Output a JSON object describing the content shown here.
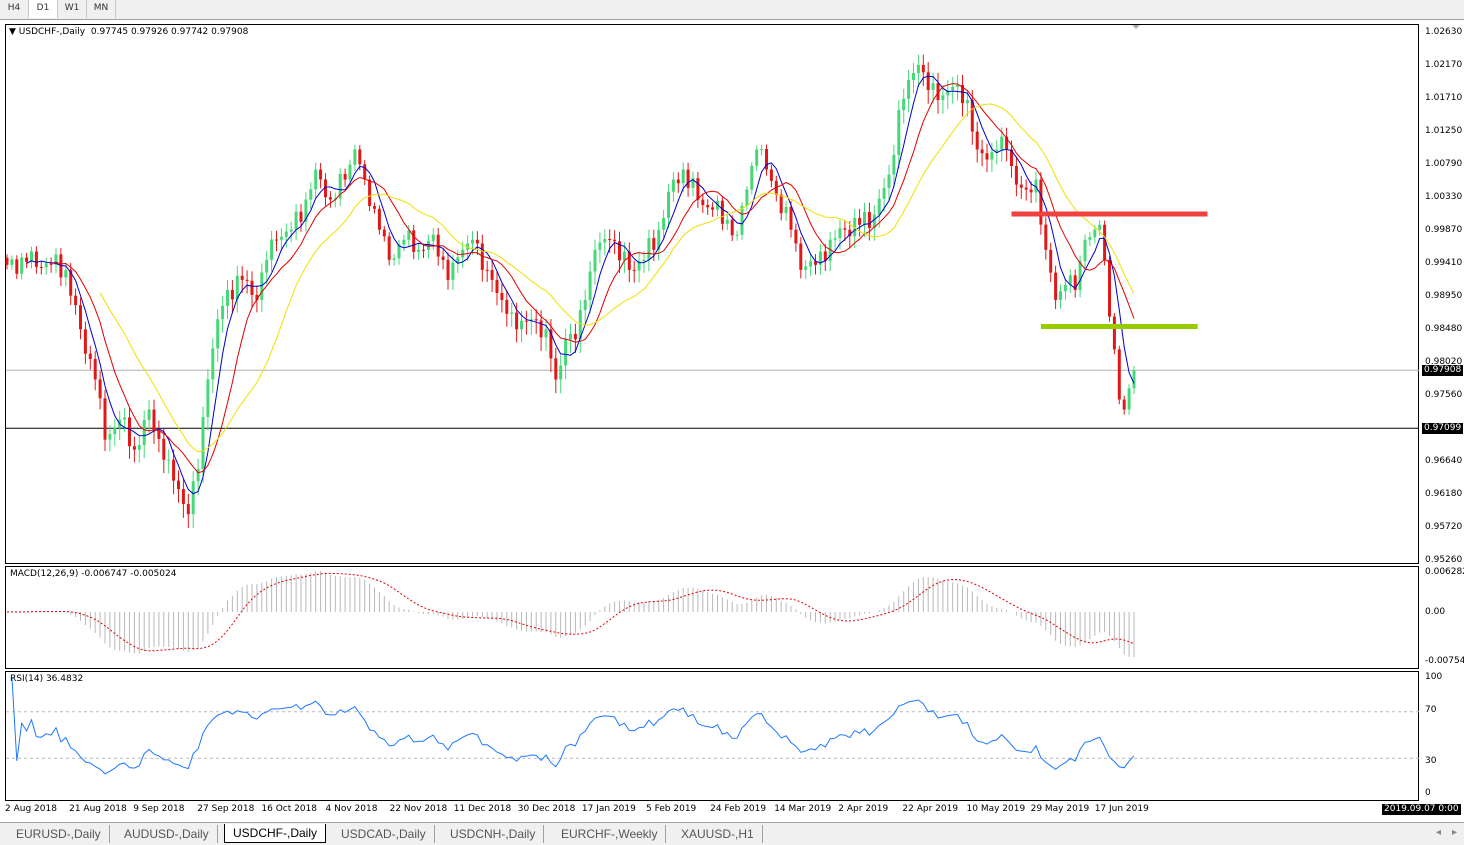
{
  "timeframe_tabs": [
    "H4",
    "D1",
    "W1",
    "MN"
  ],
  "active_timeframe": "D1",
  "header": {
    "symbol": "USDCHF-,Daily",
    "ohlc": "0.97745 0.97926 0.97742 0.97908"
  },
  "macd": {
    "label": "MACD(12,26,9) -0.006747 -0.005024",
    "axis": [
      "0.006282",
      "0.00",
      "-0.007542"
    ]
  },
  "rsi": {
    "label": "RSI(14) 36.4832",
    "axis": [
      "100",
      "70",
      "30",
      "0"
    ]
  },
  "price_axis": [
    "1.02630",
    "1.02170",
    "1.01710",
    "1.01250",
    "1.00790",
    "1.00330",
    "0.99870",
    "0.99410",
    "0.98950",
    "0.98480",
    "0.98020",
    "0.97560",
    "0.96640",
    "0.96180",
    "0.95720",
    "0.95260"
  ],
  "price_tags": {
    "bid": "0.97908",
    "line": "0.97099"
  },
  "x_axis": [
    "2 Aug 2018",
    "21 Aug 2018",
    "9 Sep 2018",
    "27 Sep 2018",
    "16 Oct 2018",
    "4 Nov 2018",
    "22 Nov 2018",
    "11 Dec 2018",
    "30 Dec 2018",
    "17 Jan 2019",
    "5 Feb 2019",
    "24 Feb 2019",
    "14 Mar 2019",
    "2 Apr 2019",
    "22 Apr 2019",
    "10 May 2019",
    "29 May 2019",
    "17 Jun 2019"
  ],
  "cursor_date": "2019.09.07 0:00",
  "symbol_tabs": [
    "EURUSD-,Daily",
    "AUDUSD-,Daily",
    "USDCHF-,Daily",
    "USDCAD-,Daily",
    "USDCNH-,Daily",
    "EURCHF-,Weekly",
    "XAUUSD-,H1"
  ],
  "active_symbol_tab": "USDCHF-,Daily",
  "chart_data": {
    "type": "candlestick",
    "ylim": [
      0.9526,
      1.0263
    ],
    "bars_total": 231,
    "close_anchors": [
      [
        0,
        0.9938
      ],
      [
        4,
        0.9942
      ],
      [
        9,
        0.9938
      ],
      [
        12,
        0.9931
      ],
      [
        15,
        0.9848
      ],
      [
        18,
        0.9778
      ],
      [
        20,
        0.9694
      ],
      [
        23,
        0.9722
      ],
      [
        26,
        0.968
      ],
      [
        29,
        0.9736
      ],
      [
        32,
        0.9666
      ],
      [
        35,
        0.9625
      ],
      [
        37,
        0.959
      ],
      [
        39,
        0.9653
      ],
      [
        41,
        0.9778
      ],
      [
        43,
        0.9862
      ],
      [
        45,
        0.9903
      ],
      [
        48,
        0.9917
      ],
      [
        51,
        0.9889
      ],
      [
        53,
        0.9945
      ],
      [
        55,
        0.9973
      ],
      [
        58,
        0.9987
      ],
      [
        61,
        1.0029
      ],
      [
        63,
        1.0071
      ],
      [
        66,
        1.0029
      ],
      [
        69,
        1.0057
      ],
      [
        71,
        1.0099
      ],
      [
        73,
        1.0057
      ],
      [
        76,
        0.9987
      ],
      [
        78,
        0.9945
      ],
      [
        81,
        0.9973
      ],
      [
        84,
        0.9959
      ],
      [
        87,
        0.998
      ],
      [
        90,
        0.9917
      ],
      [
        93,
        0.9959
      ],
      [
        95,
        0.9973
      ],
      [
        97,
        0.9931
      ],
      [
        99,
        0.9917
      ],
      [
        101,
        0.9889
      ],
      [
        104,
        0.9848
      ],
      [
        107,
        0.9862
      ],
      [
        110,
        0.9848
      ],
      [
        112,
        0.9778
      ],
      [
        114,
        0.9834
      ],
      [
        116,
        0.9834
      ],
      [
        118,
        0.9889
      ],
      [
        120,
        0.9959
      ],
      [
        123,
        0.9973
      ],
      [
        127,
        0.9931
      ],
      [
        130,
        0.9945
      ],
      [
        133,
        0.9987
      ],
      [
        136,
        1.0057
      ],
      [
        138,
        1.0071
      ],
      [
        141,
        1.0029
      ],
      [
        144,
        1.0015
      ],
      [
        147,
        1.0001
      ],
      [
        149,
        0.998
      ],
      [
        151,
        1.0043
      ],
      [
        153,
        1.0099
      ],
      [
        155,
        1.0071
      ],
      [
        157,
        1.0036
      ],
      [
        160,
        0.9987
      ],
      [
        162,
        0.9931
      ],
      [
        165,
        0.9938
      ],
      [
        168,
        0.9973
      ],
      [
        171,
        0.9987
      ],
      [
        174,
        0.9994
      ],
      [
        177,
        1.0008
      ],
      [
        180,
        1.0064
      ],
      [
        182,
        1.0154
      ],
      [
        184,
        1.0196
      ],
      [
        186,
        1.0217
      ],
      [
        188,
        1.0182
      ],
      [
        190,
        1.0168
      ],
      [
        192,
        1.0182
      ],
      [
        194,
        1.0189
      ],
      [
        196,
        1.0168
      ],
      [
        198,
        1.0099
      ],
      [
        200,
        1.0085
      ],
      [
        202,
        1.0099
      ],
      [
        204,
        1.0099
      ],
      [
        206,
        1.005
      ],
      [
        208,
        1.0043
      ],
      [
        210,
        1.0057
      ],
      [
        212,
        0.9959
      ],
      [
        214,
        0.9889
      ],
      [
        216,
        0.991
      ],
      [
        218,
        0.9903
      ],
      [
        220,
        0.9973
      ],
      [
        222,
        0.9987
      ],
      [
        223,
        0.9994
      ],
      [
        224,
        0.9945
      ],
      [
        226,
        0.982
      ],
      [
        227,
        0.975
      ],
      [
        228,
        0.9736
      ],
      [
        230,
        0.97908
      ]
    ],
    "moving_averages": [
      {
        "period": 5,
        "color": "#0000cc"
      },
      {
        "period": 10,
        "color": "#e00000"
      },
      {
        "period": 20,
        "color": "#f0e000"
      }
    ],
    "horizontal_lines": [
      {
        "price": 0.97908,
        "color": "#b0b0b0"
      },
      {
        "price": 0.97099,
        "color": "#000000"
      }
    ],
    "drawn_levels": [
      {
        "price": 1.0009,
        "from_bar": 205,
        "to_bar": 245,
        "color": "#f04040"
      },
      {
        "price": 0.9852,
        "from_bar": 211,
        "to_bar": 243,
        "color": "#99cc00"
      }
    ],
    "up_color": "#46d878",
    "down_color": "#e01818"
  }
}
